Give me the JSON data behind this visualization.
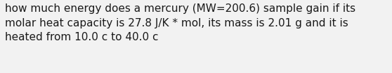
{
  "text": "how much energy does a mercury (MW=200.6) sample gain if its\nmolar heat capacity is 27.8 J/K * mol, its mass is 2.01 g and it is\nheated from 10.0 c to 40.0 c",
  "background_color": "#f2f2f2",
  "text_color": "#1a1a1a",
  "font_size": 11.0,
  "fig_width": 5.58,
  "fig_height": 1.05,
  "dpi": 100
}
